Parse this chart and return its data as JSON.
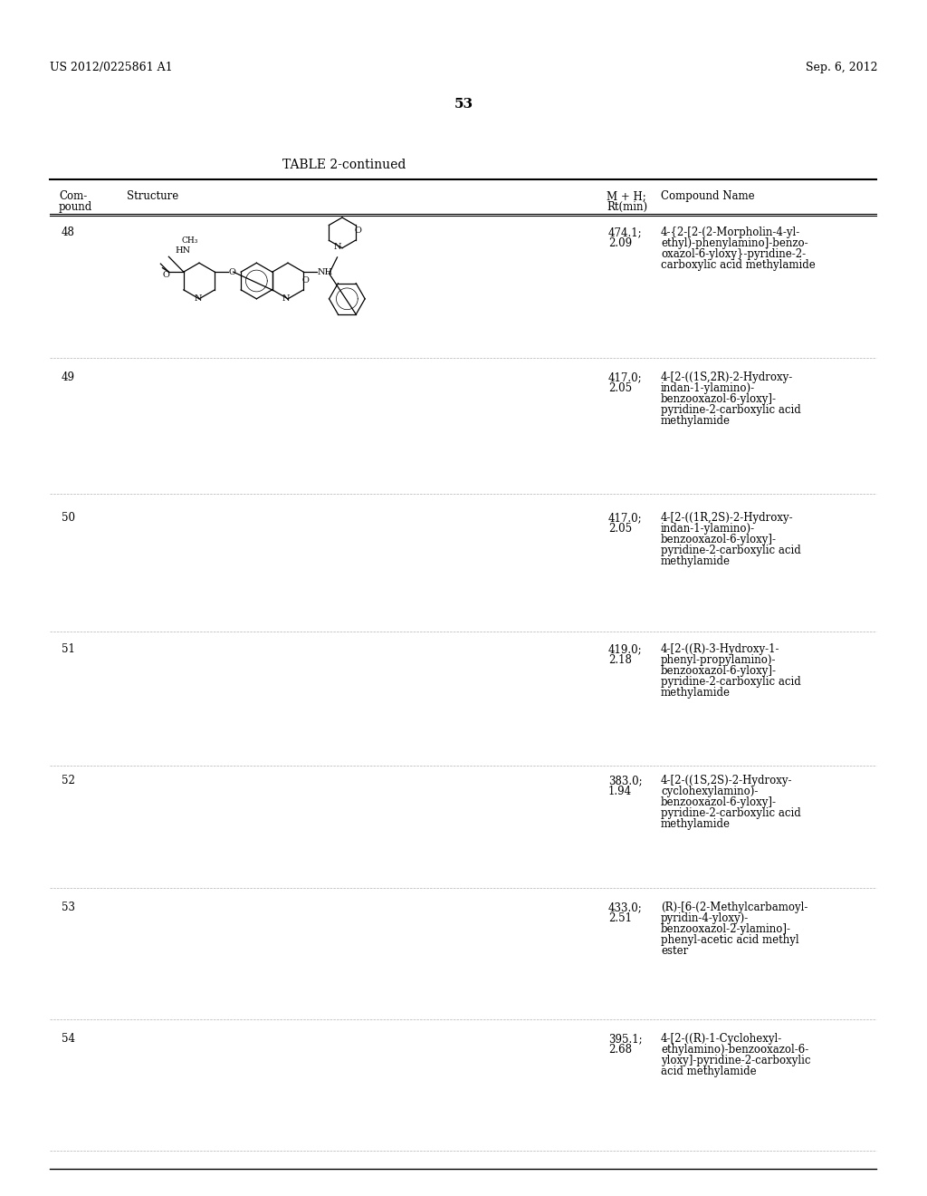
{
  "page_number": "53",
  "left_header": "US 2012/0225861 A1",
  "right_header": "Sep. 6, 2012",
  "table_title": "TABLE 2-continued",
  "col_headers": [
    "Com-\npound",
    "Structure",
    "M + H;\nRt(min)",
    "Compound Name"
  ],
  "background_color": "#ffffff",
  "text_color": "#000000",
  "compounds": [
    {
      "number": "48",
      "mh": "474.1;\n2.09",
      "name": "4-{2-[2-(2-Morpholin-4-yl-\nethyl)-phenylamino]-benzo-\noxazol-6-yloxy}-pyridine-2-\ncarboxylic acid methylamide"
    },
    {
      "number": "49",
      "mh": "417.0;\n2.05",
      "name": "4-[2-((1S,2R)-2-Hydroxy-\nindan-1-ylamino)-\nbenzooxazol-6-yloxy]-\npyridine-2-carboxylic acid\nmethylamide"
    },
    {
      "number": "50",
      "mh": "417.0;\n2.05",
      "name": "4-[2-((1R,2S)-2-Hydroxy-\nindan-1-ylamino)-\nbenzooxazol-6-yloxy]-\npyridine-2-carboxylic acid\nmethylamide"
    },
    {
      "number": "51",
      "mh": "419.0;\n2.18",
      "name": "4-[2-((R)-3-Hydroxy-1-\nphenyl-propylamino)-\nbenzooxazol-6-yloxy]-\npyridine-2-carboxylic acid\nmethylamide"
    },
    {
      "number": "52",
      "mh": "383.0;\n1.94",
      "name": "4-[2-((1S,2S)-2-Hydroxy-\ncyclohexylamino)-\nbenzooxazol-6-yloxy]-\npyridine-2-carboxylic acid\nmethylamide"
    },
    {
      "number": "53",
      "mh": "433.0;\n2.51",
      "name": "(R)-[6-(2-Methylcarbamoyl-\npyridin-4-yloxy)-\nbenzooxazol-2-ylamino]-\nphenyl-acetic acid methyl\nester"
    },
    {
      "number": "54",
      "mh": "395.1;\n2.68",
      "name": "4-[2-((R)-1-Cyclohexyl-\nethylamino)-benzooxazol-6-\nyloxy]-pyridine-2-carboxylic\nacid methylamide"
    }
  ]
}
